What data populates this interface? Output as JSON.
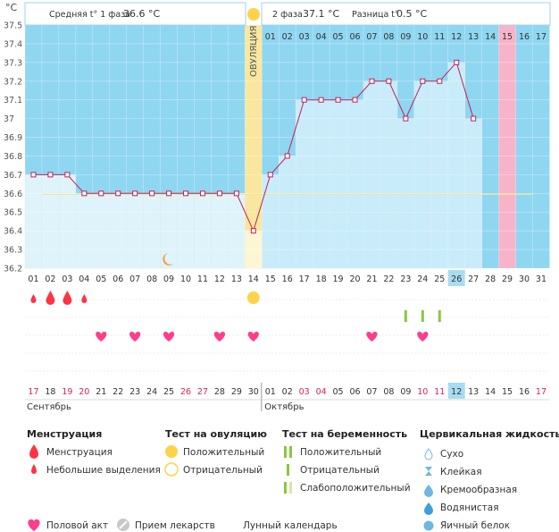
{
  "header": {
    "unit": "°C",
    "phase1_label": "Средняя t° 1 фаза",
    "phase1_value": "36.6 °C",
    "phase2_label": "2 фаза",
    "phase2_value": "37.1 °C",
    "diff_label": "Разница t°",
    "diff_value": "0.5 °C",
    "ovulation_label": "ОВУЛЯЦИЯ"
  },
  "chart_data": {
    "type": "line",
    "ylim": [
      36.2,
      37.5
    ],
    "y_ticks": [
      "36.2",
      "36.3",
      "36.4",
      "36.5",
      "36.6",
      "36.7",
      "36.8",
      "36.9",
      "37",
      "37.1",
      "37.2",
      "37.3",
      "37.4",
      "37.5"
    ],
    "x_days": [
      "01",
      "02",
      "03",
      "04",
      "05",
      "06",
      "07",
      "08",
      "09",
      "10",
      "11",
      "12",
      "13",
      "14",
      "15",
      "16",
      "17",
      "18",
      "19",
      "20",
      "21",
      "22",
      "23",
      "24",
      "25",
      "26",
      "27",
      "28",
      "29",
      "30",
      "31"
    ],
    "top_days": [
      "01",
      "02",
      "03",
      "04",
      "05",
      "06",
      "07",
      "08",
      "09",
      "10",
      "11",
      "12",
      "13",
      "14",
      "15",
      "16",
      "17"
    ],
    "top_day_start_index": 14,
    "dates": [
      "17",
      "18",
      "19",
      "20",
      "21",
      "22",
      "23",
      "24",
      "25",
      "26",
      "27",
      "28",
      "29",
      "30",
      "01",
      "02",
      "03",
      "04",
      "05",
      "06",
      "07",
      "08",
      "09",
      "10",
      "11",
      "12",
      "13",
      "14",
      "15",
      "16",
      "17"
    ],
    "red_dates": [
      "19",
      "20",
      "26",
      "27",
      "03",
      "04",
      "10",
      "11",
      "17"
    ],
    "months": [
      "Сентябрь",
      "Октябрь"
    ],
    "temperatures": [
      36.7,
      36.7,
      36.7,
      36.6,
      36.6,
      36.6,
      36.6,
      36.6,
      36.6,
      36.6,
      36.6,
      36.6,
      36.6,
      36.4,
      36.7,
      36.8,
      37.1,
      37.1,
      37.1,
      37.1,
      37.2,
      37.2,
      37.0,
      37.2,
      37.2,
      37.3,
      37.0
    ],
    "coverline": 36.6,
    "ovulation_day": 14,
    "highlight_day": 29,
    "today_day": 26,
    "moon_day": 9,
    "menstruation": [
      {
        "day": 1,
        "size": "small"
      },
      {
        "day": 2,
        "size": "large"
      },
      {
        "day": 3,
        "size": "large"
      },
      {
        "day": 4,
        "size": "small"
      }
    ],
    "intercourse_days": [
      5,
      7,
      9,
      12,
      14,
      21,
      24
    ],
    "ovulation_test_positive_day": 14,
    "pregnancy_test_days": [
      23,
      24,
      25
    ],
    "colors": {
      "phase1_bg": "#dff3fb",
      "phase2_bg": "#c9ecfa",
      "future_bg": "#8fd6f1",
      "ovulation": "#f9e79f",
      "highlight": "#f7b4c8",
      "line": "#c0225a",
      "coverline": "#f3e58c",
      "blood": "#ff3344",
      "heart": "#ff3d8a",
      "sun": "#ffd24a",
      "today": "#a9dcf2",
      "red_text": "#e0205a"
    }
  },
  "legend": {
    "menstruation": {
      "title": "Менструация",
      "items": [
        "Менструация",
        "Небольшие выделения"
      ]
    },
    "ovulation_test": {
      "title": "Тест на овуляцию",
      "items": [
        "Положительный",
        "Отрицательный"
      ]
    },
    "pregnancy_test": {
      "title": "Тест на беременность",
      "items": [
        "Положительный",
        "Отрицательный",
        "Слабоположительный"
      ]
    },
    "cervical": {
      "title": "Цервикальная жидкость",
      "items": [
        "Сухо",
        "Клейкая",
        "Кремообразная",
        "Водянистая",
        "Яичный белок"
      ]
    },
    "bottom": [
      "Половой акт",
      "Прием лекарств",
      "Лунный календарь"
    ]
  }
}
